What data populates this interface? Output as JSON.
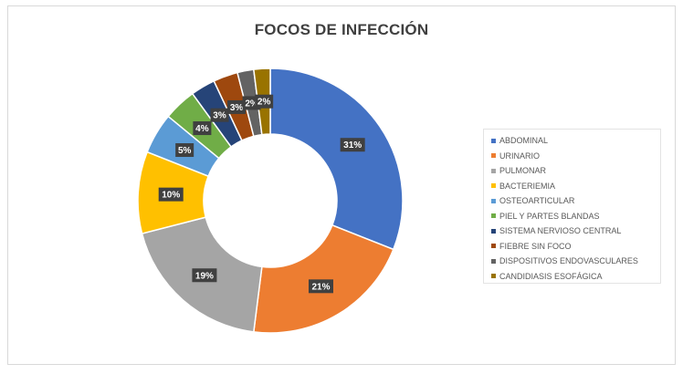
{
  "chart_data": {
    "type": "pie",
    "title": "FOCOS DE INFECCIÓN",
    "legend_position": "right",
    "categories": [
      "ABDOMINAL",
      "URINARIO",
      "PULMONAR",
      "BACTERIEMIA",
      "OSTEOARTICULAR",
      "PIEL Y PARTES BLANDAS",
      "SISTEMA NERVIOSO CENTRAL",
      "FIEBRE SIN FOCO",
      "DISPOSITIVOS ENDOVASCULARES",
      "CANDIDIASIS ESOFÁGICA"
    ],
    "values": [
      31,
      21,
      19,
      10,
      5,
      4,
      3,
      3,
      2,
      2
    ],
    "data_labels": [
      "31%",
      "21%",
      "19%",
      "10%",
      "5%",
      "4%",
      "3%",
      "3%",
      "2%",
      "2%"
    ],
    "colors": [
      "#4472C4",
      "#ED7D31",
      "#A5A5A5",
      "#FFC000",
      "#5B9BD5",
      "#70AD47",
      "#264478",
      "#9E480E",
      "#636363",
      "#997300"
    ]
  }
}
